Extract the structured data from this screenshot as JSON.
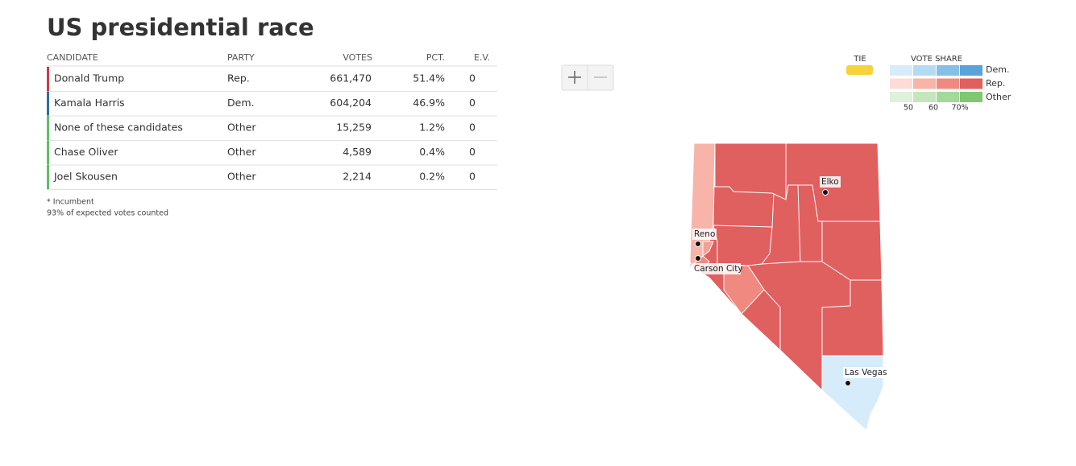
{
  "header": {
    "title": "US presidential race"
  },
  "table": {
    "columns": [
      "CANDIDATE",
      "PARTY",
      "VOTES",
      "PCT.",
      "E.V."
    ],
    "rows": [
      [
        "Donald Trump",
        "Rep.",
        "661,470",
        "51.4%",
        "0"
      ],
      [
        "Kamala Harris",
        "Dem.",
        "604,204",
        "46.9%",
        "0"
      ],
      [
        "None of these candidates",
        "Other",
        "15,259",
        "1.2%",
        "0"
      ],
      [
        "Chase Oliver",
        "Other",
        "4,589",
        "0.4%",
        "0"
      ],
      [
        "Joel Skousen",
        "Other",
        "2,214",
        "0.2%",
        "0"
      ]
    ]
  },
  "notes": [
    "* Incumbent",
    "93% of expected votes counted"
  ],
  "legend": {
    "tie": "TIE",
    "vote_share": "VOTE SHARE",
    "parties": [
      "Dem.",
      "Rep.",
      "Other"
    ],
    "ticks": [
      "50",
      "60",
      "70%"
    ]
  },
  "map": {
    "cities": [
      "Elko",
      "Reno",
      "Carson City",
      "Las Vegas"
    ]
  }
}
